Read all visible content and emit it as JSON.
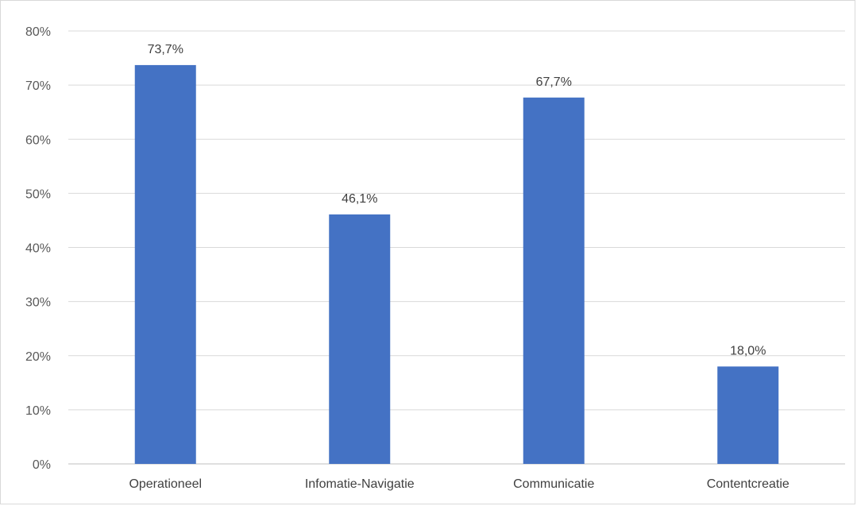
{
  "chart_data": {
    "type": "bar",
    "categories": [
      "Operationeel",
      "Infomatie-Navigatie",
      "Communicatie",
      "Contentcreatie"
    ],
    "values": [
      73.7,
      46.1,
      67.7,
      18.0
    ],
    "data_labels": [
      "73,7%",
      "46,1%",
      "67,7%",
      "18,0%"
    ],
    "ylim": [
      0,
      80
    ],
    "yticks": [
      0,
      10,
      20,
      30,
      40,
      50,
      60,
      70,
      80
    ],
    "ytick_labels": [
      "0%",
      "10%",
      "20%",
      "30%",
      "40%",
      "50%",
      "60%",
      "70%",
      "80%"
    ],
    "title": "",
    "xlabel": "",
    "ylabel": "",
    "grid": true,
    "legend": "none",
    "colors": {
      "bar": "#4472C4",
      "grid": "#d9d9d9",
      "axis": "#bfbfbf"
    }
  }
}
